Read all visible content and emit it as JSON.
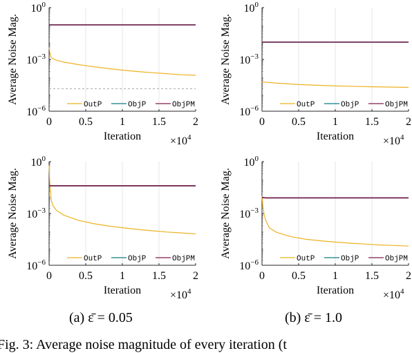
{
  "chart_data": [
    {
      "type": "line",
      "position": "top-left",
      "ylabel": "Average Noise Mag.",
      "xlabel": "Iteration",
      "x_multiplier": "×10^4",
      "yscale": "log",
      "xlim": [
        0,
        2
      ],
      "ylim": [
        1e-06,
        1
      ],
      "xticks": [
        "0",
        "0.5",
        "1",
        "1.5",
        "2"
      ],
      "yticks": [
        "10^-6",
        "10^-3",
        "10^0"
      ],
      "grid": true,
      "legend": "bottom",
      "reference_line": {
        "style": "dashed",
        "value": 2e-05
      },
      "series": [
        {
          "name": "OutP",
          "color": "#EDB120",
          "x": [
            0,
            0.02,
            0.05,
            0.1,
            0.2,
            0.4,
            0.6,
            0.8,
            1.0,
            1.2,
            1.4,
            1.6,
            1.8,
            2.0
          ],
          "values": [
            0.005,
            0.0015,
            0.0011,
            0.0009,
            0.0007,
            0.0005,
            0.00038,
            0.0003,
            0.00024,
            0.0002,
            0.00017,
            0.00015,
            0.00013,
            0.00012
          ]
        },
        {
          "name": "ObjP",
          "color": "#0C7A80",
          "x": [
            0,
            2
          ],
          "values": [
            0.1,
            0.1
          ]
        },
        {
          "name": "ObjPM",
          "color": "#7E1A4B",
          "x": [
            0,
            2
          ],
          "values": [
            0.1,
            0.1
          ]
        }
      ]
    },
    {
      "type": "line",
      "position": "top-right",
      "ylabel": "Average Noise Mag.",
      "xlabel": "Iteration",
      "x_multiplier": "×10^4",
      "yscale": "log",
      "xlim": [
        0,
        2
      ],
      "ylim": [
        1e-06,
        1
      ],
      "xticks": [
        "0",
        "0.5",
        "1",
        "1.5",
        "2"
      ],
      "yticks": [
        "10^-6",
        "10^-3",
        "10^0"
      ],
      "grid": true,
      "legend": "bottom",
      "series": [
        {
          "name": "OutP",
          "color": "#EDB120",
          "x": [
            0,
            0.2,
            0.5,
            1.0,
            1.5,
            2.0
          ],
          "values": [
            5e-05,
            4.2e-05,
            3.5e-05,
            2.9e-05,
            2.6e-05,
            2.4e-05
          ]
        },
        {
          "name": "ObjP",
          "color": "#0C7A80",
          "x": [
            0,
            2
          ],
          "values": [
            0.01,
            0.01
          ]
        },
        {
          "name": "ObjPM",
          "color": "#7E1A4B",
          "x": [
            0,
            2
          ],
          "values": [
            0.01,
            0.01
          ]
        }
      ]
    },
    {
      "type": "line",
      "position": "bottom-left",
      "ylabel": "Average Noise Mag.",
      "xlabel": "Iteration",
      "x_multiplier": "×10^4",
      "yscale": "log",
      "xlim": [
        0,
        2
      ],
      "ylim": [
        1e-06,
        1
      ],
      "xticks": [
        "0",
        "0.5",
        "1",
        "1.5",
        "2"
      ],
      "yticks": [
        "10^-6",
        "10^-3",
        "10^0"
      ],
      "grid": true,
      "legend": "bottom",
      "series": [
        {
          "name": "OutP",
          "color": "#EDB120",
          "x": [
            0,
            0.01,
            0.03,
            0.05,
            0.1,
            0.2,
            0.4,
            0.6,
            0.8,
            1.0,
            1.2,
            1.4,
            1.6,
            1.8,
            2.0
          ],
          "values": [
            0.6,
            0.05,
            0.006,
            0.003,
            0.0015,
            0.0008,
            0.0004,
            0.00026,
            0.00019,
            0.00015,
            0.00012,
            0.0001,
            8.5e-05,
            7.5e-05,
            6.5e-05
          ]
        },
        {
          "name": "ObjP",
          "color": "#0C7A80",
          "x": [
            0,
            2
          ],
          "values": [
            0.04,
            0.04
          ]
        },
        {
          "name": "ObjPM",
          "color": "#7E1A4B",
          "x": [
            0,
            2
          ],
          "values": [
            0.04,
            0.04
          ]
        }
      ]
    },
    {
      "type": "line",
      "position": "bottom-right",
      "ylabel": "Average Noise Mag.",
      "xlabel": "Iteration",
      "x_multiplier": "×10^4",
      "yscale": "log",
      "xlim": [
        0,
        2
      ],
      "ylim": [
        1e-06,
        1
      ],
      "xticks": [
        "0",
        "0.5",
        "1",
        "1.5",
        "2"
      ],
      "yticks": [
        "10^-6",
        "10^-3",
        "10^0"
      ],
      "grid": true,
      "legend": "bottom",
      "series": [
        {
          "name": "OutP",
          "color": "#EDB120",
          "x": [
            0,
            0.01,
            0.03,
            0.05,
            0.1,
            0.2,
            0.4,
            0.6,
            0.8,
            1.0,
            1.2,
            1.4,
            1.6,
            1.8,
            2.0
          ],
          "values": [
            0.01,
            0.003,
            0.0008,
            0.0004,
            0.00015,
            8e-05,
            4.5e-05,
            3.2e-05,
            2.6e-05,
            2.2e-05,
            1.9e-05,
            1.7e-05,
            1.5e-05,
            1.4e-05,
            1.3e-05
          ]
        },
        {
          "name": "ObjP",
          "color": "#0C7A80",
          "x": [
            0,
            0.05,
            2
          ],
          "values": [
            0.0085,
            0.008,
            0.008
          ]
        },
        {
          "name": "ObjPM",
          "color": "#7E1A4B",
          "x": [
            0,
            0.05,
            2
          ],
          "values": [
            0.0085,
            0.008,
            0.008
          ]
        }
      ]
    }
  ],
  "captions": {
    "a": "(a) ε̄ = 0.05",
    "b": "(b) ε̄ = 1.0",
    "figure": "Fig. 3: Average noise magnitude of every iteration (t"
  }
}
